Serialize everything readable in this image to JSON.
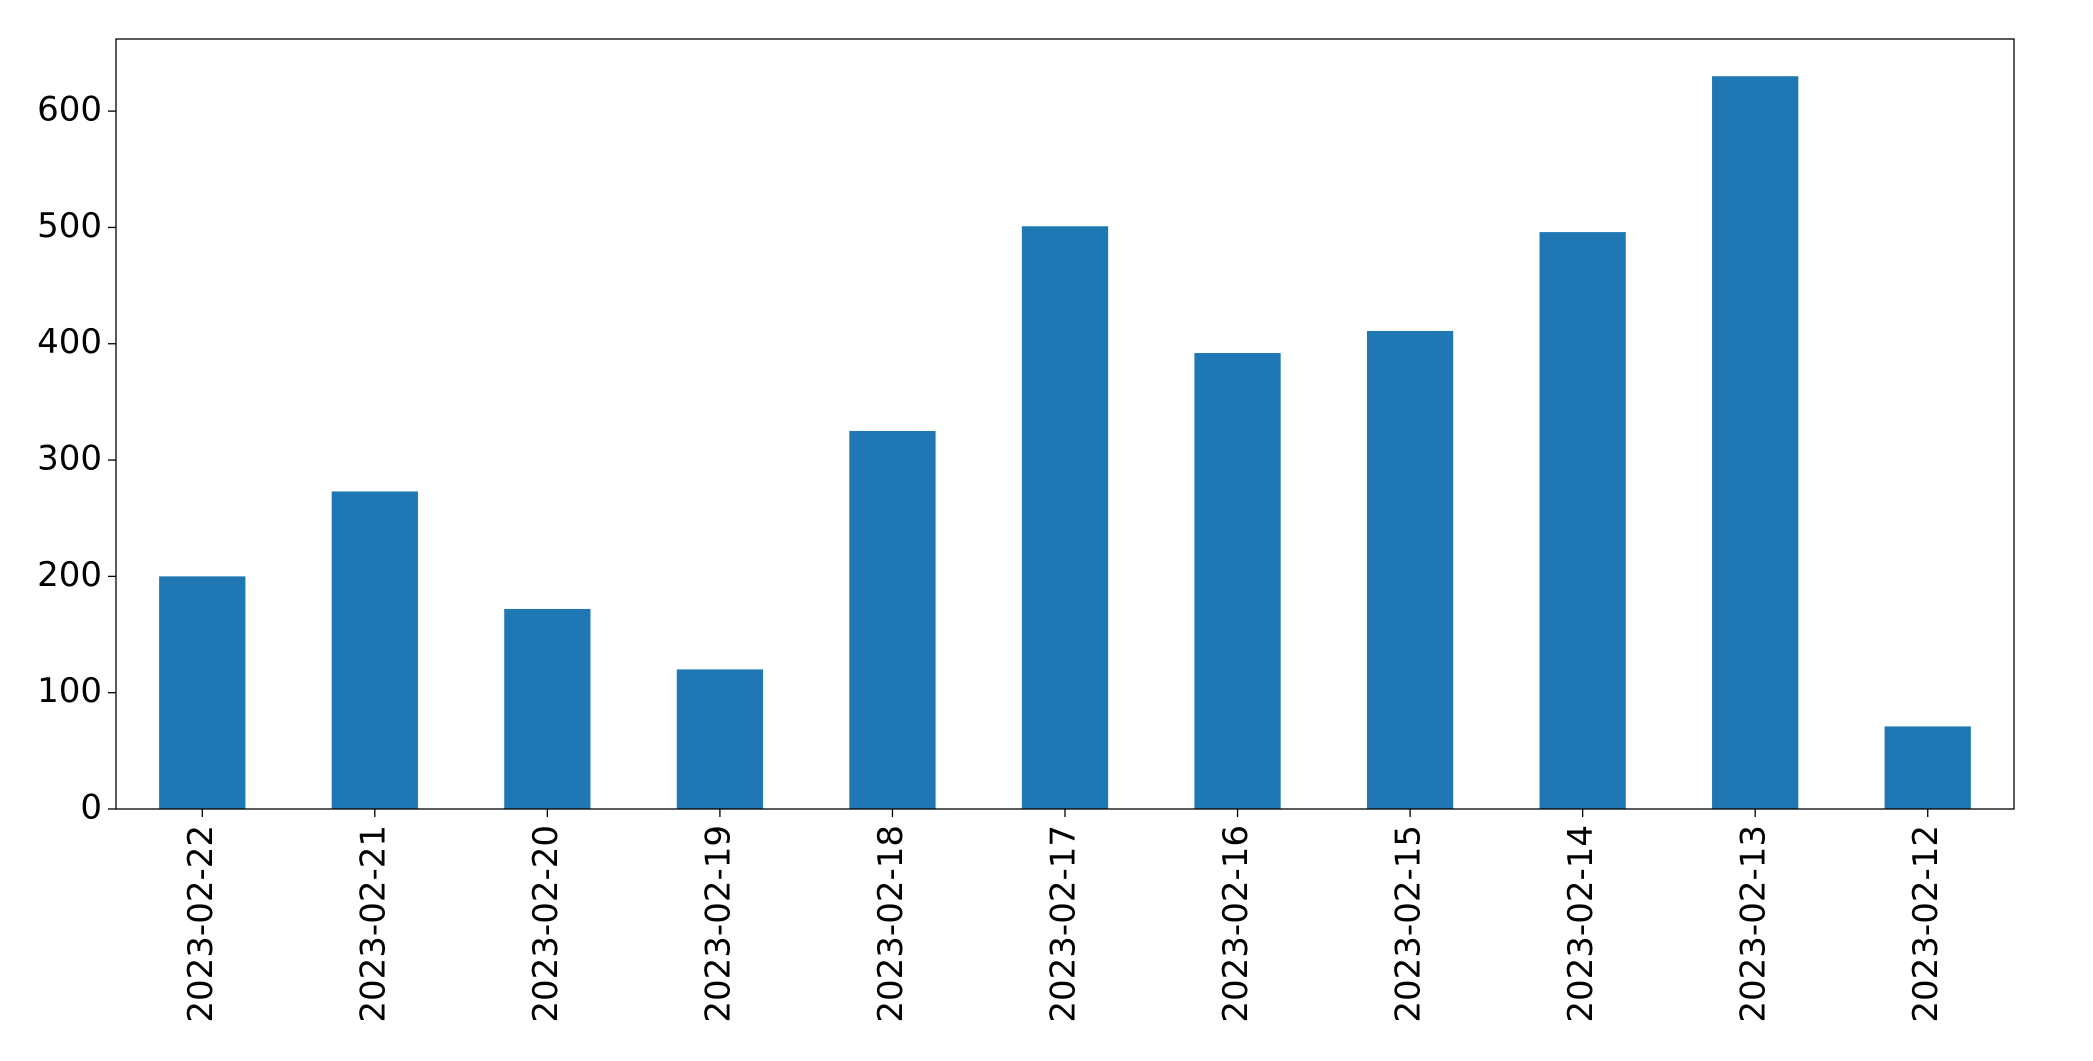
{
  "chart_data": {
    "type": "bar",
    "categories": [
      "2023-02-22",
      "2023-02-21",
      "2023-02-20",
      "2023-02-19",
      "2023-02-18",
      "2023-02-17",
      "2023-02-16",
      "2023-02-15",
      "2023-02-14",
      "2023-02-13",
      "2023-02-12"
    ],
    "values": [
      200,
      273,
      172,
      120,
      325,
      501,
      392,
      411,
      496,
      630,
      71
    ],
    "color": "#1f77b4",
    "ylim": [
      0,
      662
    ],
    "yticks": [
      0,
      100,
      200,
      300,
      400,
      500,
      600
    ],
    "grid": false
  }
}
